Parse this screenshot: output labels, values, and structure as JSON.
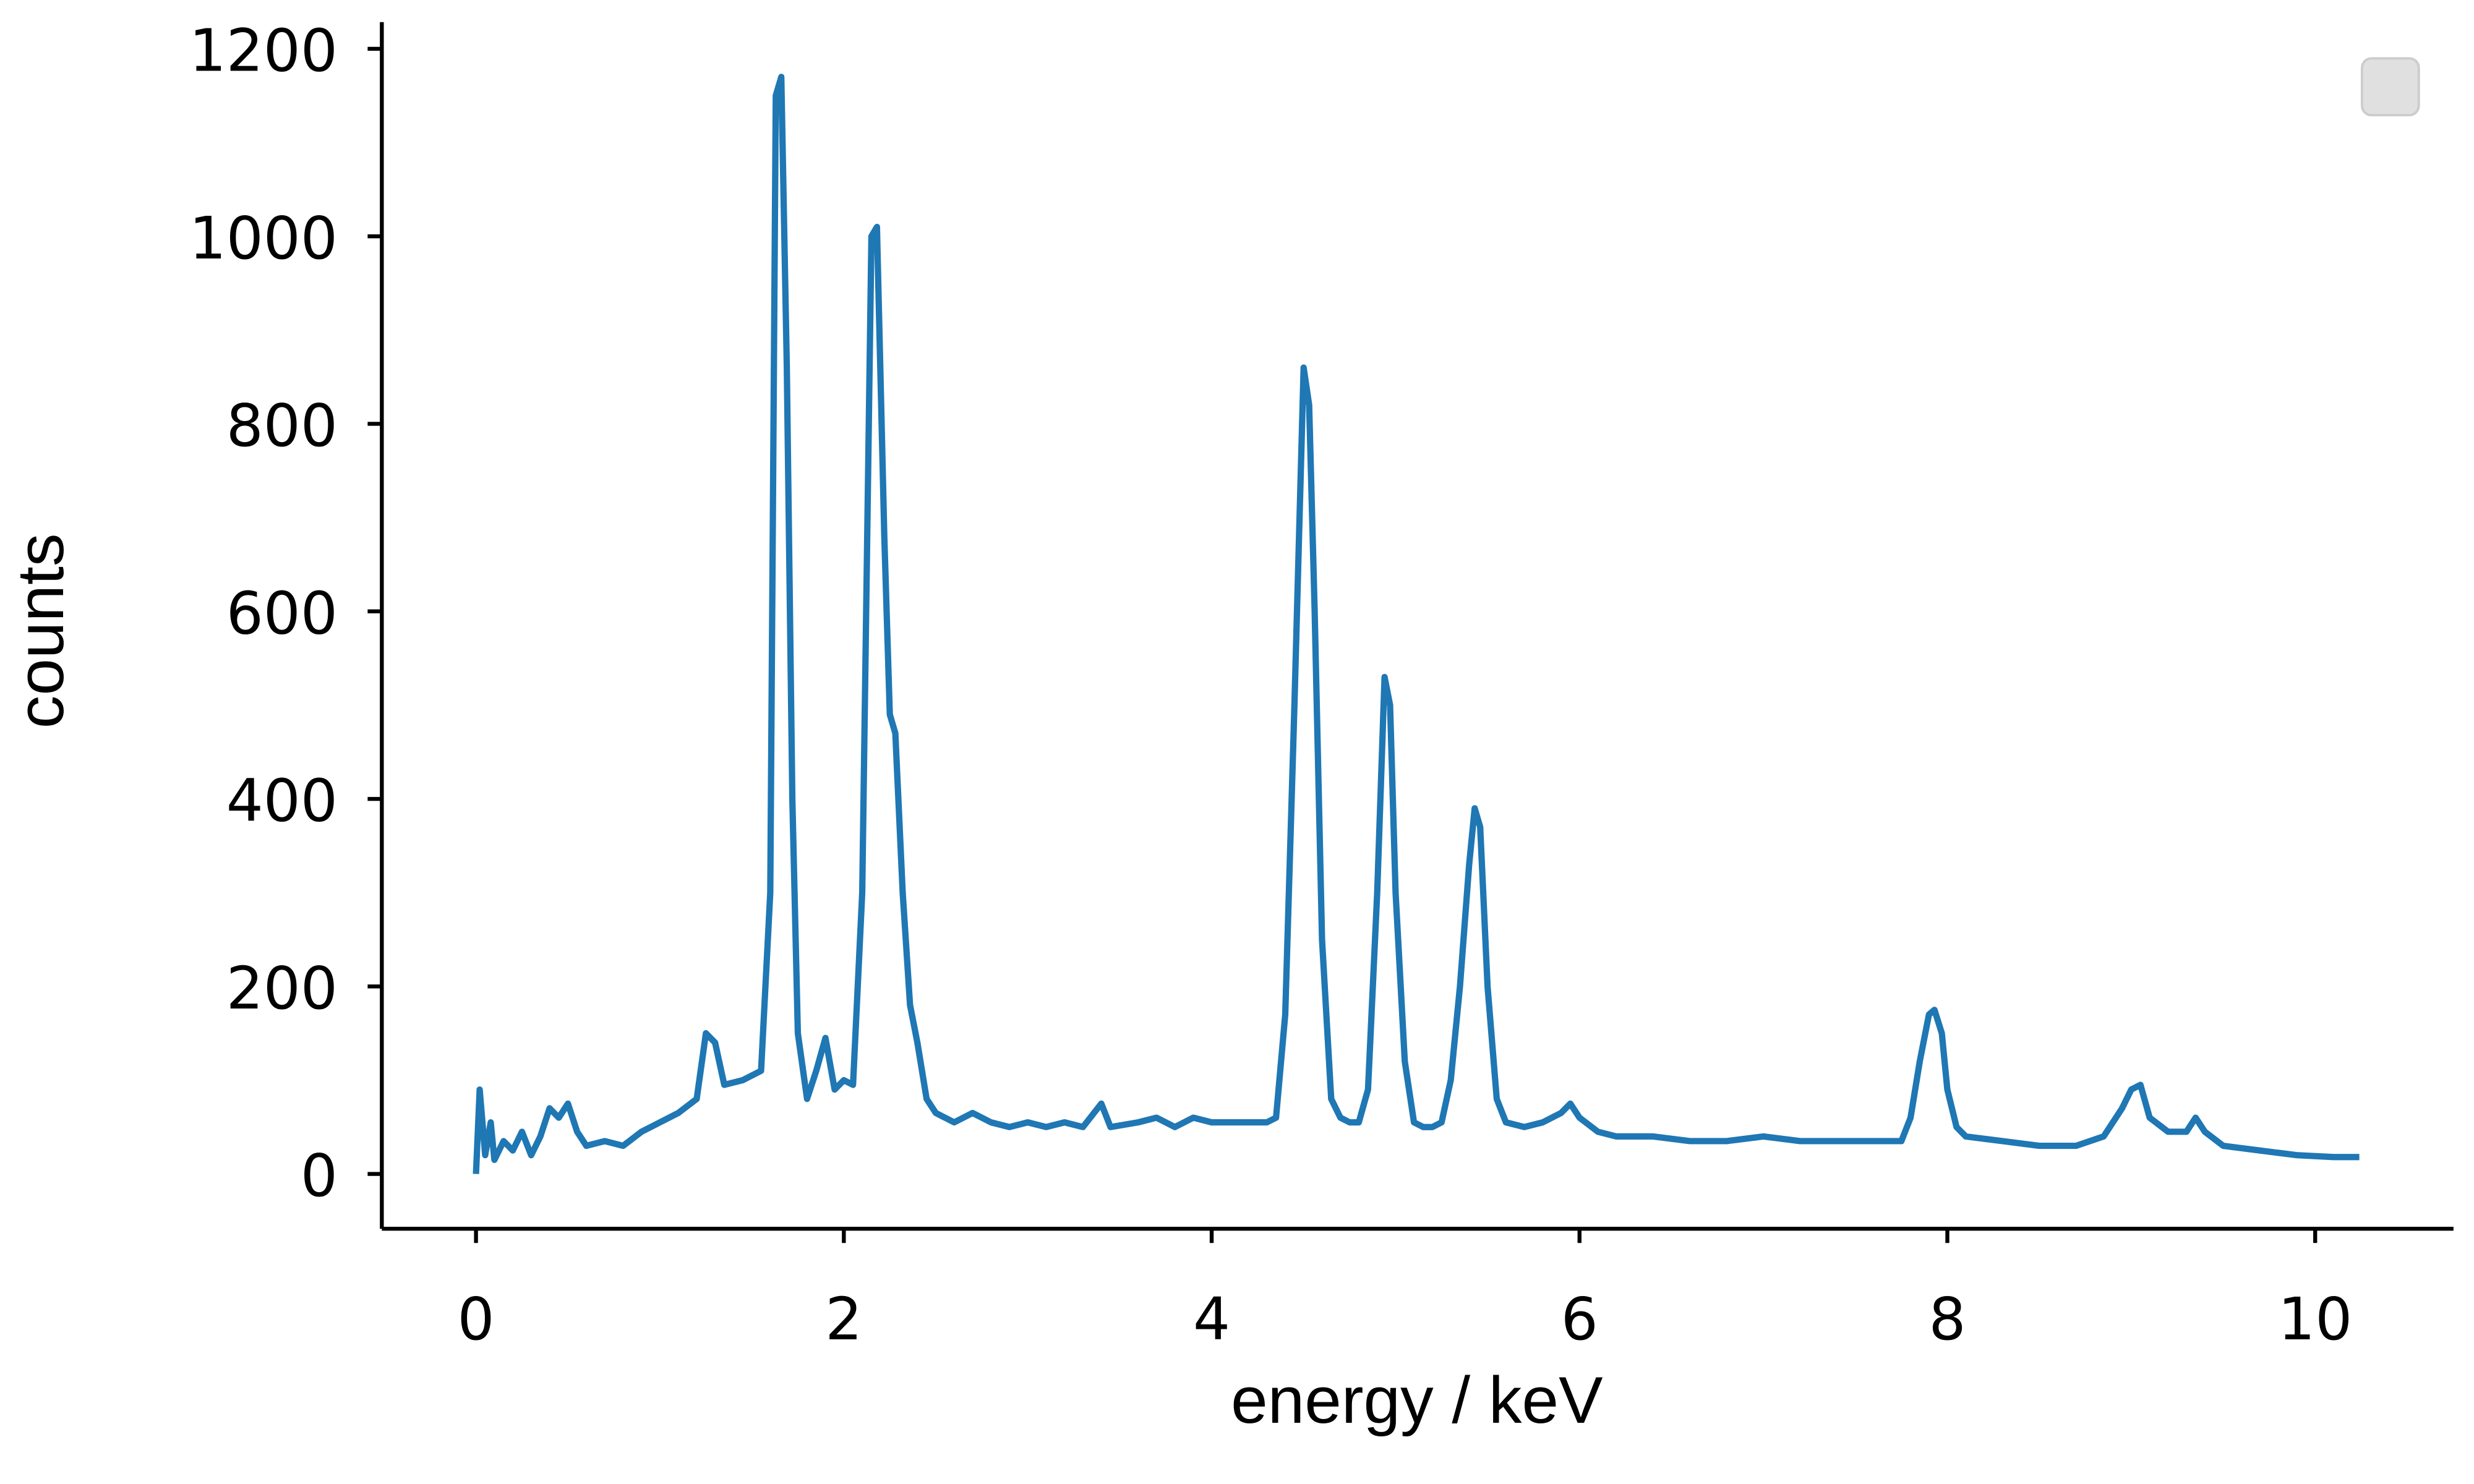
{
  "chart_data": {
    "type": "line",
    "x_label": "energy / keV",
    "y_label": "counts",
    "color": "#1f77b4",
    "x": [
      0,
      0.02,
      0.05,
      0.08,
      0.1,
      0.15,
      0.2,
      0.25,
      0.3,
      0.35,
      0.4,
      0.45,
      0.5,
      0.55,
      0.6,
      0.7,
      0.8,
      0.9,
      1.0,
      1.1,
      1.2,
      1.25,
      1.3,
      1.35,
      1.45,
      1.55,
      1.6,
      1.63,
      1.66,
      1.69,
      1.72,
      1.75,
      1.8,
      1.85,
      1.9,
      1.95,
      2.0,
      2.05,
      2.1,
      2.15,
      2.18,
      2.22,
      2.25,
      2.28,
      2.32,
      2.36,
      2.4,
      2.45,
      2.5,
      2.6,
      2.7,
      2.8,
      2.9,
      3.0,
      3.1,
      3.2,
      3.3,
      3.4,
      3.45,
      3.6,
      3.7,
      3.8,
      3.9,
      4.0,
      4.1,
      4.2,
      4.3,
      4.35,
      4.4,
      4.45,
      4.5,
      4.53,
      4.56,
      4.6,
      4.65,
      4.7,
      4.75,
      4.8,
      4.85,
      4.9,
      4.94,
      4.97,
      5.0,
      5.05,
      5.1,
      5.15,
      5.2,
      5.25,
      5.3,
      5.35,
      5.4,
      5.43,
      5.46,
      5.5,
      5.55,
      5.6,
      5.7,
      5.8,
      5.9,
      5.95,
      6.0,
      6.1,
      6.2,
      6.4,
      6.6,
      6.8,
      7.0,
      7.2,
      7.4,
      7.6,
      7.75,
      7.8,
      7.85,
      7.9,
      7.93,
      7.97,
      8.0,
      8.05,
      8.1,
      8.3,
      8.5,
      8.7,
      8.85,
      8.95,
      9.0,
      9.05,
      9.1,
      9.2,
      9.3,
      9.35,
      9.4,
      9.5,
      9.7,
      9.9,
      10.1,
      10.24
    ],
    "values": [
      0,
      90,
      20,
      55,
      15,
      35,
      25,
      45,
      20,
      40,
      70,
      60,
      75,
      45,
      30,
      35,
      30,
      45,
      55,
      65,
      80,
      150,
      140,
      95,
      100,
      110,
      300,
      1150,
      1170,
      860,
      400,
      150,
      80,
      110,
      145,
      90,
      100,
      95,
      300,
      1000,
      1010,
      680,
      490,
      470,
      300,
      180,
      140,
      80,
      65,
      55,
      65,
      55,
      50,
      55,
      50,
      55,
      50,
      75,
      50,
      55,
      60,
      50,
      60,
      55,
      55,
      55,
      55,
      60,
      170,
      500,
      860,
      820,
      600,
      250,
      80,
      60,
      55,
      55,
      90,
      300,
      530,
      500,
      300,
      120,
      55,
      50,
      50,
      55,
      100,
      200,
      330,
      390,
      370,
      200,
      80,
      55,
      50,
      55,
      65,
      75,
      60,
      45,
      40,
      40,
      35,
      35,
      40,
      35,
      35,
      35,
      35,
      60,
      120,
      170,
      175,
      150,
      90,
      50,
      40,
      35,
      30,
      30,
      40,
      70,
      90,
      95,
      60,
      45,
      45,
      60,
      45,
      30,
      25,
      20,
      18,
      18
    ],
    "xlim": [
      -0.512,
      10.752
    ],
    "ylim": [
      -58.5,
      1228.5
    ],
    "xticks": [
      0,
      2,
      4,
      6,
      8,
      10
    ],
    "yticks": [
      0,
      200,
      400,
      600,
      800,
      1000,
      1200
    ]
  }
}
